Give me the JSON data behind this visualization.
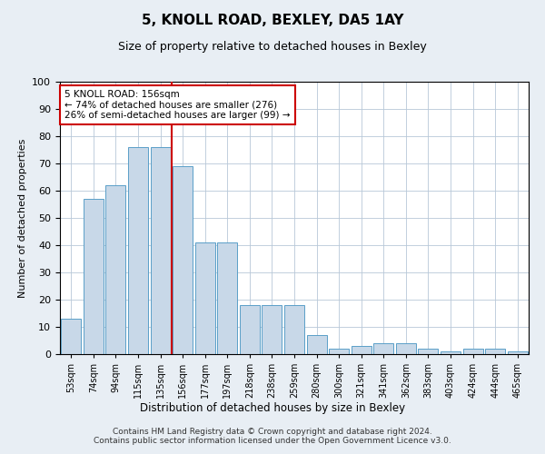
{
  "title": "5, KNOLL ROAD, BEXLEY, DA5 1AY",
  "subtitle": "Size of property relative to detached houses in Bexley",
  "xlabel": "Distribution of detached houses by size in Bexley",
  "ylabel": "Number of detached properties",
  "categories": [
    "53sqm",
    "74sqm",
    "94sqm",
    "115sqm",
    "135sqm",
    "156sqm",
    "177sqm",
    "197sqm",
    "218sqm",
    "238sqm",
    "259sqm",
    "280sqm",
    "300sqm",
    "321sqm",
    "341sqm",
    "362sqm",
    "383sqm",
    "403sqm",
    "424sqm",
    "444sqm",
    "465sqm"
  ],
  "values": [
    13,
    57,
    62,
    76,
    76,
    69,
    41,
    41,
    18,
    18,
    18,
    7,
    2,
    3,
    4,
    4,
    2,
    1,
    2,
    2,
    1
  ],
  "bar_color": "#c8d8e8",
  "bar_edge_color": "#5a9fc8",
  "vline_color": "#cc0000",
  "annotation_text": "5 KNOLL ROAD: 156sqm\n← 74% of detached houses are smaller (276)\n26% of semi-detached houses are larger (99) →",
  "annotation_box_color": "#cc0000",
  "ylim": [
    0,
    100
  ],
  "footer": "Contains HM Land Registry data © Crown copyright and database right 2024.\nContains public sector information licensed under the Open Government Licence v3.0.",
  "bg_color": "#e8eef4",
  "plot_bg_color": "#ffffff"
}
